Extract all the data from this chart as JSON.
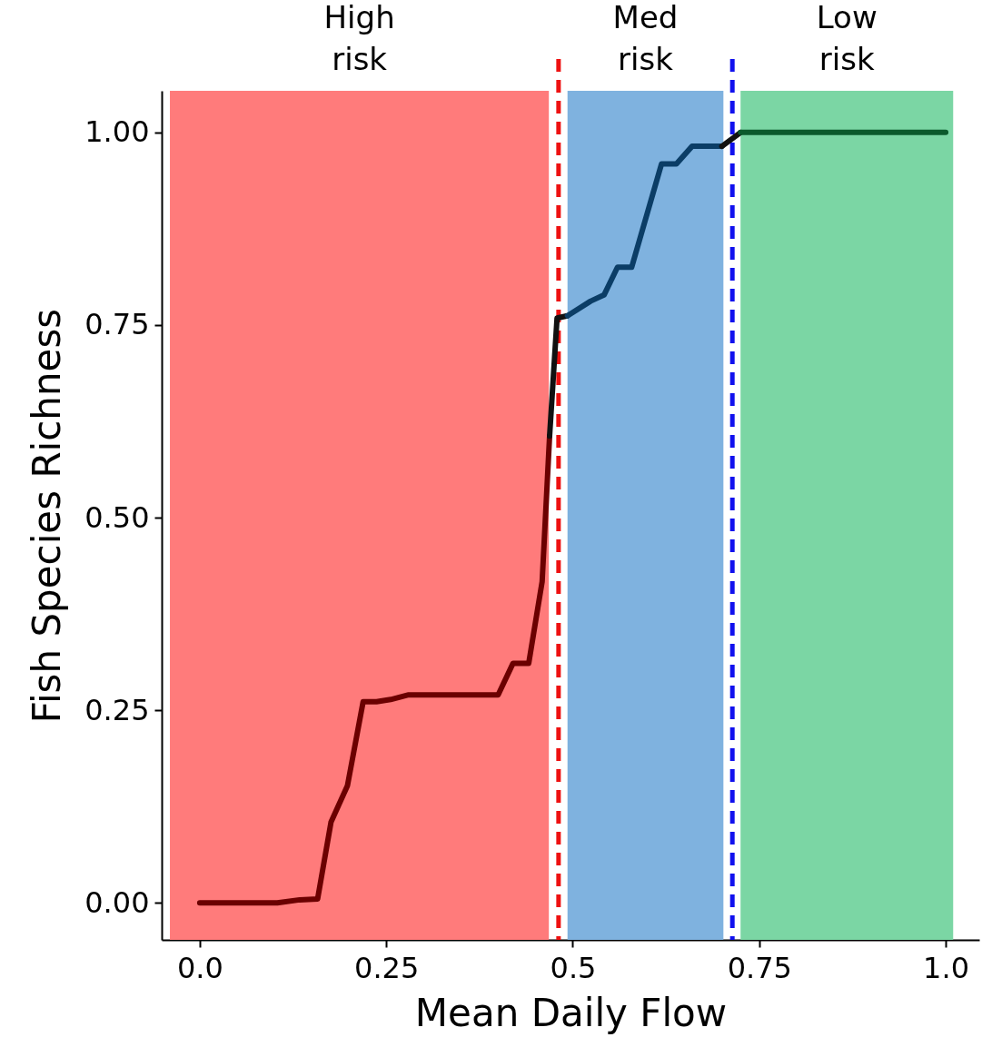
{
  "chart_data": {
    "type": "line",
    "xlabel": "Mean Daily Flow",
    "ylabel": "Fish Species Richness",
    "xlim": [
      -0.051,
      1.045
    ],
    "ylim": [
      -0.048,
      1.054
    ],
    "xticks": [
      {
        "value": 0,
        "label": "0.0"
      },
      0.25,
      0.5,
      0.75,
      {
        "value": 1,
        "label": "1.0"
      }
    ],
    "yticks": [
      {
        "value": 0,
        "label": "0.00"
      },
      0.25,
      {
        "value": 0.5,
        "label": "0.50"
      },
      0.75,
      {
        "value": 1,
        "label": "1.00"
      }
    ],
    "grid": false,
    "marker": "none",
    "line_style": "solid",
    "bands": [
      {
        "axis": "x",
        "from": -0.04,
        "to": 0.468,
        "label": "High risk",
        "color": "#ff7b7b"
      },
      {
        "axis": "x",
        "from": 0.493,
        "to": 0.702,
        "label": "Med risk",
        "color": "#7fb2df"
      },
      {
        "axis": "x",
        "from": 0.725,
        "to": 1.01,
        "label": "Low risk",
        "color": "#7bd6a4"
      }
    ],
    "ref_lines": [
      {
        "axis": "x",
        "value": 0.481,
        "color": "#ee1111",
        "line_style": "dashed"
      },
      {
        "axis": "x",
        "value": 0.714,
        "color": "#1111ee",
        "line_style": "dashed"
      }
    ],
    "series": [
      {
        "color": "#6b0000",
        "x": [
          0,
          0.104,
          0.134,
          0.158,
          0.176,
          0.198,
          0.219,
          0.237,
          0.256,
          0.28,
          0.329,
          0.4,
          0.42,
          0.441,
          0.459,
          0.469
        ],
        "values": [
          0,
          0,
          0.004,
          0.005,
          0.105,
          0.152,
          0.261,
          0.261,
          0.264,
          0.27,
          0.27,
          0.27,
          0.311,
          0.311,
          0.417,
          0.606
        ]
      },
      {
        "color": "#111111",
        "x": [
          0.469,
          0.479,
          0.493
        ],
        "values": [
          0.606,
          0.759,
          0.762
        ]
      },
      {
        "color": "#0b3d66",
        "x": [
          0.493,
          0.524,
          0.542,
          0.56,
          0.579,
          0.619,
          0.639,
          0.66,
          0.7
        ],
        "values": [
          0.762,
          0.781,
          0.789,
          0.825,
          0.825,
          0.959,
          0.959,
          0.982,
          0.982
        ]
      },
      {
        "color": "#111111",
        "x": [
          0.7,
          0.725
        ],
        "values": [
          0.982,
          1.0
        ]
      },
      {
        "color": "#0b5a2c",
        "x": [
          0.725,
          1.0
        ],
        "values": [
          1.0,
          1.0
        ]
      }
    ]
  }
}
